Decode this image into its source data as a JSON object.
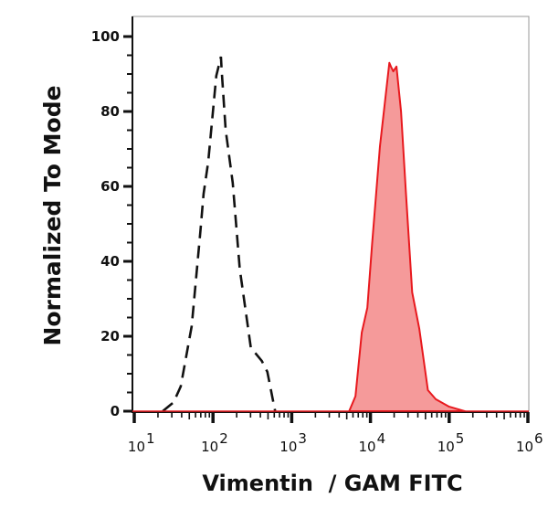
{
  "chart_data": {
    "type": "area",
    "xlabel": "Vimentin  / GAM FITC",
    "ylabel": "Normalized To Mode",
    "xscale": "log",
    "xlim": [
      9.5,
      1000000
    ],
    "ylim": [
      0,
      100
    ],
    "x_ticks": [
      {
        "base": "10",
        "exp": "1",
        "value": 10
      },
      {
        "base": "10",
        "exp": "2",
        "value": 100
      },
      {
        "base": "10",
        "exp": "3",
        "value": 1000
      },
      {
        "base": "10",
        "exp": "4",
        "value": 10000
      },
      {
        "base": "10",
        "exp": "5",
        "value": 100000
      },
      {
        "base": "10",
        "exp": "6",
        "value": 1000000
      }
    ],
    "y_ticks": [
      "0",
      "20",
      "40",
      "60",
      "80",
      "100"
    ],
    "grid": false,
    "series": [
      {
        "style": "dashed-outline",
        "color": "#111111",
        "x": [
          23,
          31.6,
          38.9,
          53.7,
          69.2,
          75.9,
          87.1,
          110,
          126,
          129,
          145,
          178,
          219,
          302,
          417,
          490,
          589,
          617
        ],
        "y": [
          0,
          2.4,
          6.6,
          22.7,
          48,
          58,
          66.6,
          89.5,
          94.6,
          91,
          75,
          61,
          38,
          17,
          13.4,
          10.5,
          2,
          0
        ]
      },
      {
        "style": "filled",
        "color": "#e8191e",
        "fill": "#f59a9a",
        "x": [
          5370,
          6460,
          7760,
          9120,
          10500,
          13200,
          17400,
          18200,
          19500,
          21400,
          24500,
          28200,
          33900,
          41700,
          53700,
          67600,
          100000,
          158000
        ],
        "y": [
          0,
          4,
          21,
          27.6,
          44.6,
          70.7,
          93,
          92,
          90.7,
          92,
          80,
          58.5,
          31.7,
          22,
          5.6,
          3.2,
          1.2,
          0
        ]
      }
    ]
  }
}
